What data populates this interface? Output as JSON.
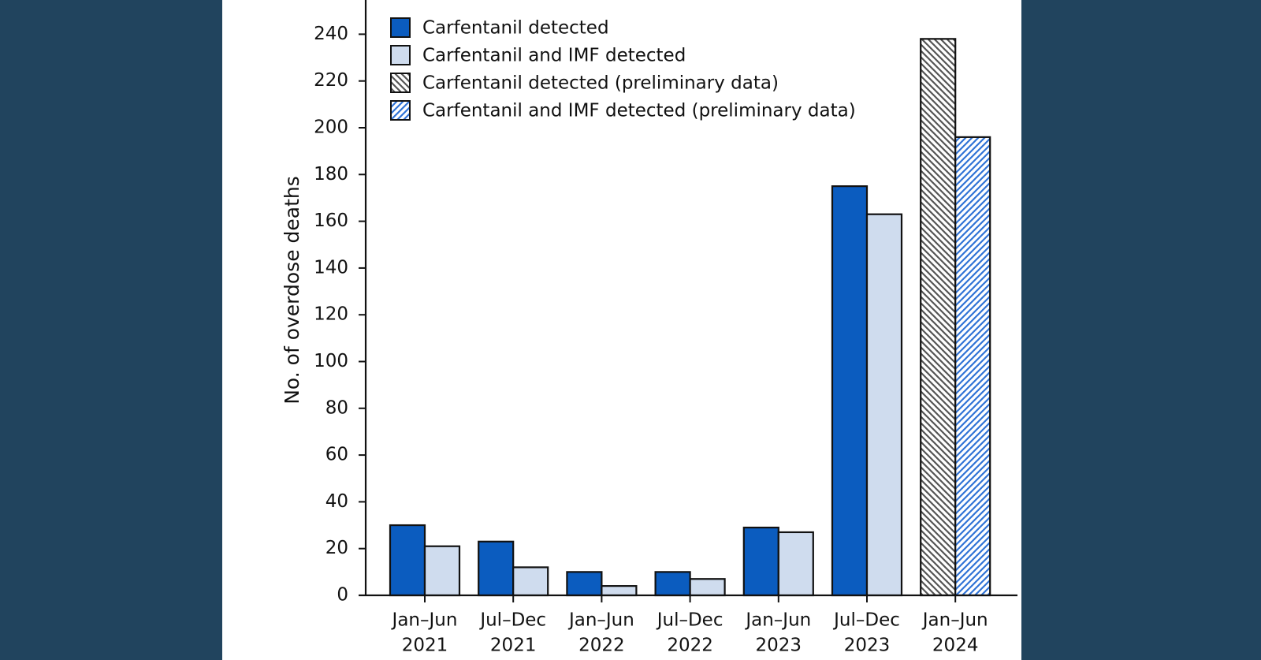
{
  "chart_data": {
    "type": "bar",
    "y_label": "No. of overdose deaths",
    "categories": [
      [
        "Jan–Jun",
        "2021"
      ],
      [
        "Jul–Dec",
        "2021"
      ],
      [
        "Jan–Jun",
        "2022"
      ],
      [
        "Jul–Dec",
        "2022"
      ],
      [
        "Jan–Jun",
        "2023"
      ],
      [
        "Jul–Dec",
        "2023"
      ],
      [
        "Jan–Jun",
        "2024"
      ]
    ],
    "series": [
      {
        "name": "Carfentanil detected",
        "color": "#0b5cbf",
        "values": [
          30,
          23,
          10,
          10,
          29,
          175,
          null
        ]
      },
      {
        "name": "Carfentanil and IMF detected",
        "color": "#cfdcee",
        "values": [
          21,
          12,
          4,
          7,
          27,
          163,
          null
        ]
      },
      {
        "name": "Carfentanil detected (preliminary data)",
        "color": "#555555",
        "pattern": "backslash",
        "values": [
          null,
          null,
          null,
          null,
          null,
          null,
          238
        ]
      },
      {
        "name": "Carfentanil and IMF detected (preliminary data)",
        "color": "#2f73d6",
        "pattern": "slash",
        "values": [
          null,
          null,
          null,
          null,
          null,
          null,
          196
        ]
      }
    ],
    "ylim": [
      0,
      260
    ],
    "yticks": [
      0,
      20,
      40,
      60,
      80,
      100,
      120,
      140,
      160,
      180,
      200,
      220,
      240
    ],
    "legend": "top-left"
  }
}
